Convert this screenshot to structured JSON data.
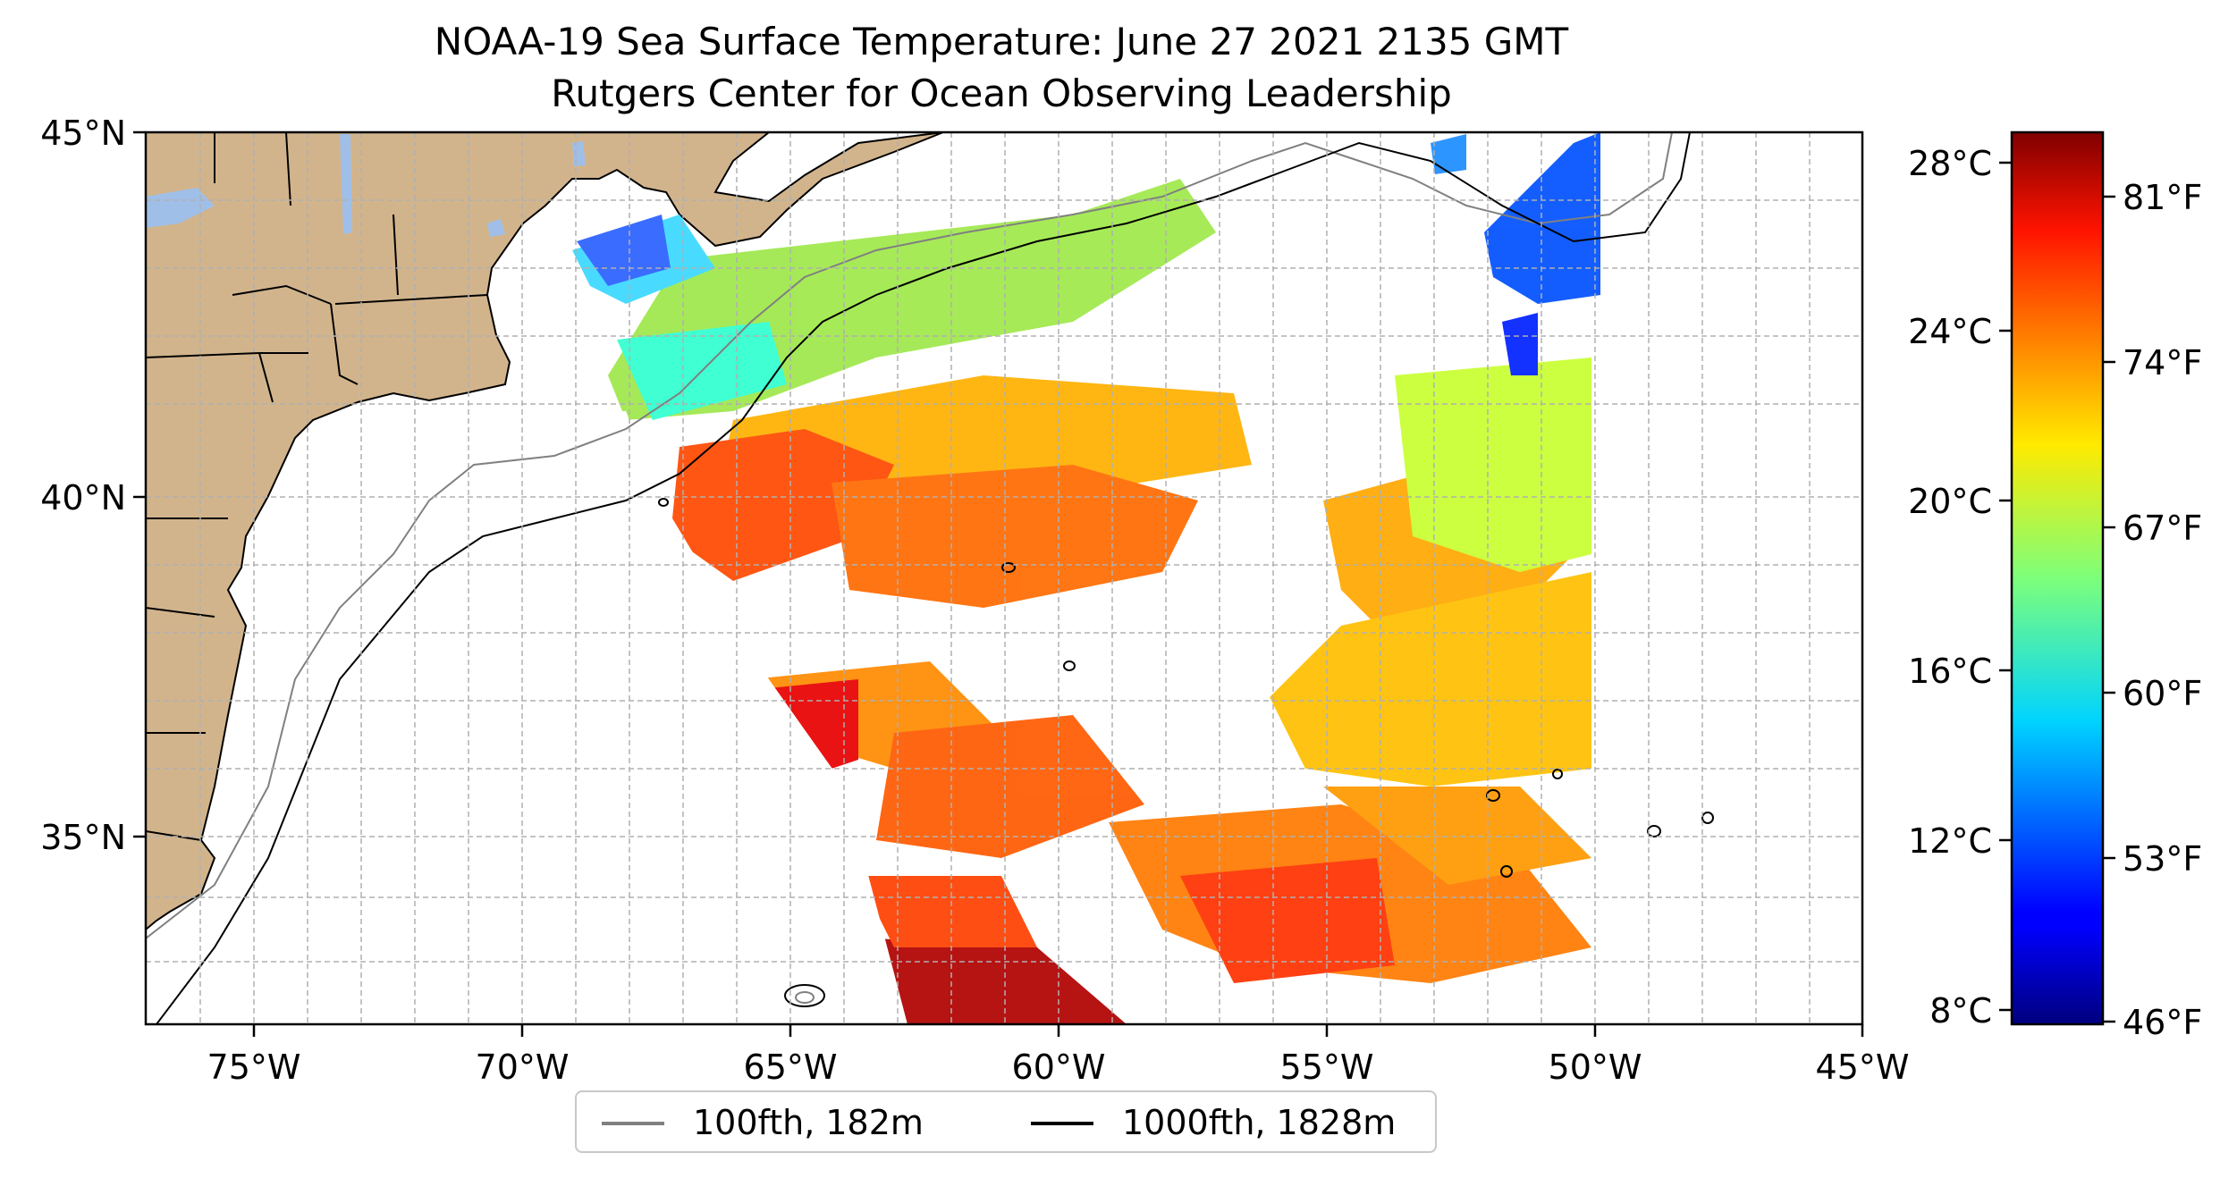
{
  "title": {
    "line1": "NOAA-19 Sea Surface Temperature: June 27 2021 2135 GMT",
    "line2": "Rutgers Center for Ocean Observing Leadership"
  },
  "map": {
    "lon_range": [
      -77,
      -45
    ],
    "lat_range": [
      32.2,
      45
    ],
    "lon_ticks": [
      "75°W",
      "70°W",
      "65°W",
      "60°W",
      "55°W",
      "50°W",
      "45°W"
    ],
    "lat_ticks": [
      "45°N",
      "40°N",
      "35°N"
    ],
    "colors": {
      "land": "#d2b48c",
      "lakes": "#9fbfe8",
      "ocean": "#ffffff",
      "grid": "#b0b0b0"
    }
  },
  "legend": {
    "items": [
      {
        "label": "100fth, 182m",
        "color": "#808080"
      },
      {
        "label": "1000fth, 1828m",
        "color": "#000000"
      }
    ]
  },
  "colorbar": {
    "colormap": "jet",
    "celsius_ticks": [
      "28°C",
      "24°C",
      "20°C",
      "16°C",
      "12°C",
      "8°C"
    ],
    "fahrenheit_ticks": [
      "81°F",
      "74°F",
      "67°F",
      "60°F",
      "53°F",
      "46°F"
    ]
  }
}
